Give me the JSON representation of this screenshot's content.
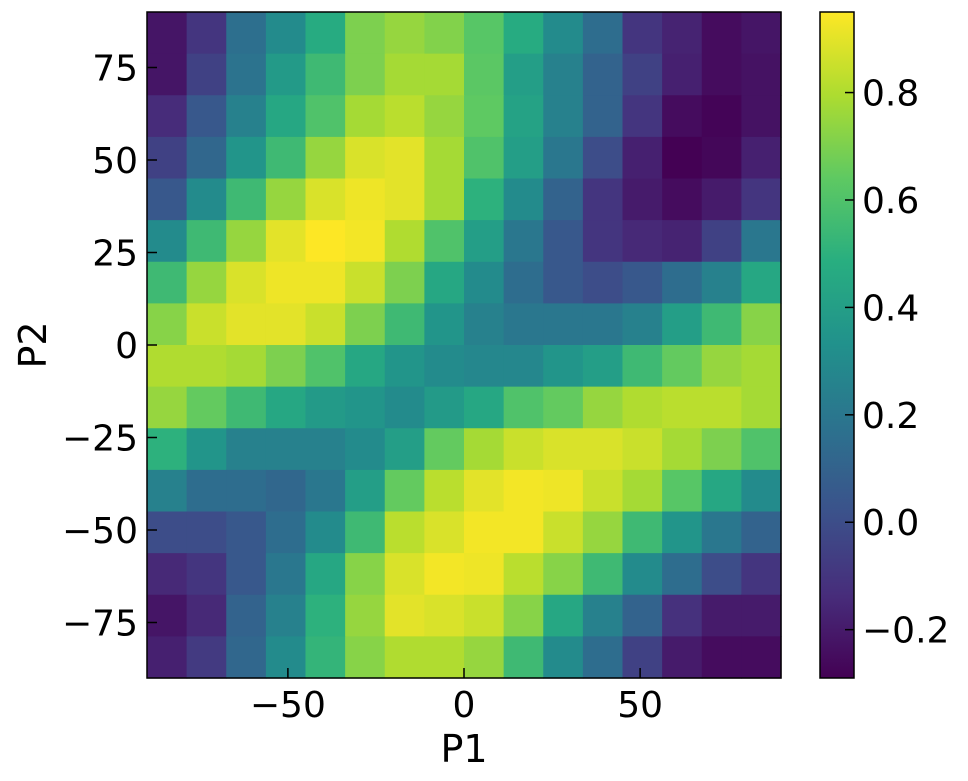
{
  "chart_data": {
    "type": "heatmap",
    "title": "",
    "xlabel": "P1",
    "ylabel": "P2",
    "xlim": [
      -90,
      90
    ],
    "ylim": [
      -90,
      90
    ],
    "grid": false,
    "colormap": "viridis",
    "colorbar": {
      "vmin": -0.29,
      "vmax": 0.95,
      "ticks": [
        -0.2,
        0.0,
        0.2,
        0.4,
        0.6,
        0.8
      ],
      "tick_labels": [
        "−0.2",
        "0.0",
        "0.2",
        "0.4",
        "0.6",
        "0.8"
      ]
    },
    "x_ticks": [
      -50,
      0,
      50
    ],
    "x_tick_labels": [
      "−50",
      "0",
      "50"
    ],
    "y_ticks": [
      -75,
      -50,
      -25,
      0,
      25,
      50,
      75
    ],
    "y_tick_labels": [
      "−75",
      "−50",
      "−25",
      "0",
      "25",
      "50",
      "75"
    ],
    "x_centers": [
      -84.375,
      -73.125,
      -61.875,
      -50.625,
      -39.375,
      -28.125,
      -16.875,
      -5.625,
      5.625,
      16.875,
      28.125,
      39.375,
      50.625,
      61.875,
      73.125,
      84.375
    ],
    "y_centers": [
      84.375,
      73.125,
      61.875,
      50.625,
      39.375,
      28.125,
      16.875,
      5.625,
      -5.625,
      -16.875,
      -28.125,
      -39.375,
      -50.625,
      -61.875,
      -73.125,
      -84.375
    ],
    "z": [
      [
        -0.22,
        -0.1,
        0.16,
        0.3,
        0.47,
        0.7,
        0.75,
        0.71,
        0.62,
        0.47,
        0.3,
        0.15,
        -0.1,
        -0.17,
        -0.25,
        -0.22
      ],
      [
        -0.22,
        -0.05,
        0.18,
        0.38,
        0.55,
        0.7,
        0.78,
        0.78,
        0.63,
        0.4,
        0.25,
        0.1,
        -0.05,
        -0.18,
        -0.25,
        -0.23
      ],
      [
        -0.14,
        0.05,
        0.25,
        0.45,
        0.6,
        0.78,
        0.82,
        0.75,
        0.64,
        0.42,
        0.25,
        0.1,
        -0.1,
        -0.25,
        -0.28,
        -0.23
      ],
      [
        -0.05,
        0.12,
        0.35,
        0.55,
        0.75,
        0.88,
        0.9,
        0.78,
        0.6,
        0.4,
        0.2,
        0.0,
        -0.18,
        -0.29,
        -0.27,
        -0.18
      ],
      [
        0.05,
        0.3,
        0.55,
        0.75,
        0.88,
        0.92,
        0.9,
        0.78,
        0.5,
        0.3,
        0.1,
        -0.1,
        -0.2,
        -0.25,
        -0.2,
        -0.1
      ],
      [
        0.3,
        0.55,
        0.75,
        0.9,
        0.95,
        0.93,
        0.8,
        0.6,
        0.4,
        0.2,
        0.05,
        -0.1,
        -0.15,
        -0.17,
        -0.05,
        0.2
      ],
      [
        0.55,
        0.75,
        0.88,
        0.92,
        0.92,
        0.85,
        0.7,
        0.45,
        0.3,
        0.15,
        0.05,
        0.0,
        0.05,
        0.15,
        0.25,
        0.45
      ],
      [
        0.72,
        0.85,
        0.9,
        0.9,
        0.85,
        0.7,
        0.55,
        0.35,
        0.25,
        0.2,
        0.2,
        0.2,
        0.25,
        0.4,
        0.55,
        0.72
      ],
      [
        0.8,
        0.8,
        0.78,
        0.7,
        0.6,
        0.45,
        0.35,
        0.3,
        0.28,
        0.28,
        0.35,
        0.4,
        0.55,
        0.65,
        0.75,
        0.78
      ],
      [
        0.75,
        0.65,
        0.55,
        0.45,
        0.38,
        0.35,
        0.3,
        0.38,
        0.45,
        0.6,
        0.65,
        0.75,
        0.8,
        0.82,
        0.82,
        0.78
      ],
      [
        0.5,
        0.35,
        0.25,
        0.25,
        0.25,
        0.3,
        0.4,
        0.65,
        0.78,
        0.85,
        0.88,
        0.88,
        0.85,
        0.78,
        0.7,
        0.6
      ],
      [
        0.25,
        0.15,
        0.15,
        0.12,
        0.2,
        0.4,
        0.65,
        0.82,
        0.9,
        0.93,
        0.92,
        0.85,
        0.78,
        0.62,
        0.45,
        0.3
      ],
      [
        0.0,
        0.0,
        0.05,
        0.15,
        0.3,
        0.55,
        0.82,
        0.88,
        0.93,
        0.93,
        0.85,
        0.75,
        0.55,
        0.35,
        0.2,
        0.1
      ],
      [
        -0.15,
        -0.1,
        0.05,
        0.2,
        0.45,
        0.72,
        0.88,
        0.93,
        0.92,
        0.82,
        0.72,
        0.55,
        0.3,
        0.15,
        0.0,
        -0.1
      ],
      [
        -0.22,
        -0.15,
        0.1,
        0.25,
        0.5,
        0.75,
        0.9,
        0.88,
        0.85,
        0.72,
        0.45,
        0.25,
        0.1,
        -0.12,
        -0.2,
        -0.2
      ],
      [
        -0.18,
        -0.08,
        0.12,
        0.3,
        0.52,
        0.72,
        0.8,
        0.8,
        0.75,
        0.55,
        0.3,
        0.15,
        -0.05,
        -0.2,
        -0.25,
        -0.25
      ]
    ]
  }
}
